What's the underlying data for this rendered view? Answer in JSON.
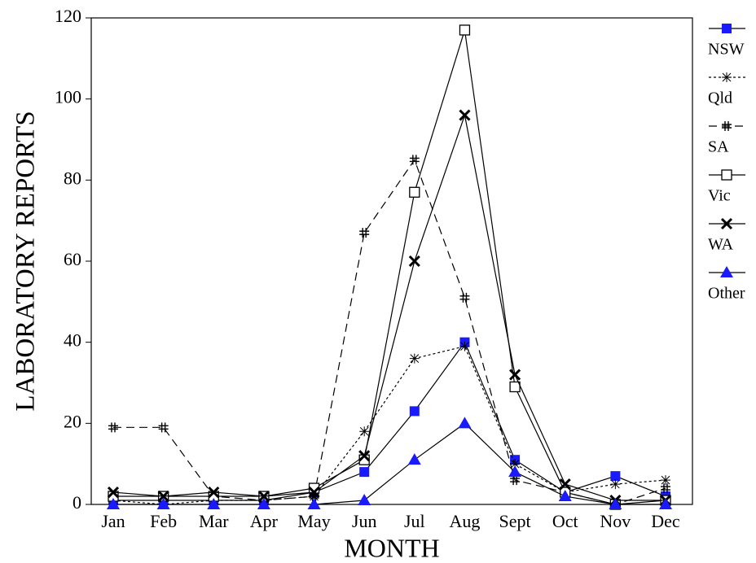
{
  "chart_data": {
    "type": "line",
    "x_label": "MONTH",
    "y_label": "LABORATORY REPORTS",
    "categories": [
      "Jan",
      "Feb",
      "Mar",
      "Apr",
      "May",
      "Jun",
      "Jul",
      "Aug",
      "Sept",
      "Oct",
      "Nov",
      "Dec"
    ],
    "ylim": [
      0,
      120
    ],
    "yticks": [
      0,
      20,
      40,
      60,
      80,
      100,
      120
    ],
    "line_color": "#000000",
    "legend": "right",
    "series": [
      {
        "name": "NSW",
        "color": "#1a1aff",
        "marker": "filled-square",
        "dash": "solid",
        "values": [
          1,
          1,
          1,
          1,
          3,
          8,
          23,
          40,
          11,
          3,
          7,
          2
        ]
      },
      {
        "name": "Qld",
        "color": "#000000",
        "marker": "asterisk",
        "dash": "dotted",
        "values": [
          1,
          0,
          1,
          1,
          2,
          18,
          36,
          39,
          10,
          3,
          5,
          6
        ]
      },
      {
        "name": "SA",
        "color": "#000000",
        "marker": "hash",
        "dash": "dashed",
        "values": [
          19,
          19,
          2,
          1,
          2,
          67,
          85,
          51,
          6,
          3,
          0,
          4
        ]
      },
      {
        "name": "Vic",
        "color": "#000000",
        "marker": "open-square",
        "dash": "solid",
        "values": [
          2,
          2,
          2,
          2,
          4,
          11,
          77,
          117,
          29,
          3,
          0,
          1
        ]
      },
      {
        "name": "WA",
        "color": "#000000",
        "marker": "cross",
        "dash": "solid",
        "values": [
          3,
          2,
          3,
          2,
          3,
          12,
          60,
          96,
          32,
          5,
          1,
          1
        ]
      },
      {
        "name": "Other",
        "color": "#1a1aff",
        "marker": "filled-triangle",
        "dash": "solid",
        "values": [
          0,
          0,
          0,
          0,
          0,
          1,
          11,
          20,
          8,
          2,
          0,
          0
        ]
      }
    ]
  }
}
